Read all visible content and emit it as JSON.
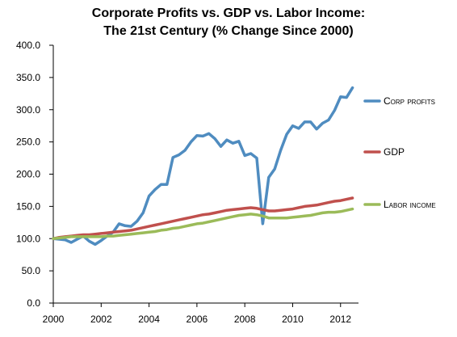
{
  "chart_data": {
    "type": "line",
    "title_lines": [
      "Corporate Profits vs. GDP vs. Labor Income:",
      "The 21st Century (% Change Since 2000)"
    ],
    "xlabel": "",
    "ylabel": "",
    "xlim": [
      2000,
      2012.75
    ],
    "ylim": [
      0,
      400
    ],
    "x_ticks": [
      2000,
      2002,
      2004,
      2006,
      2008,
      2010,
      2012
    ],
    "x_tick_labels": [
      "2000",
      "2002",
      "2004",
      "2006",
      "2008",
      "2010",
      "2012"
    ],
    "y_ticks": [
      0,
      50,
      100,
      150,
      200,
      250,
      300,
      350,
      400
    ],
    "y_tick_labels": [
      "0.0",
      "50.0",
      "100.0",
      "150.0",
      "200.0",
      "250.0",
      "300.0",
      "350.0",
      "400.0"
    ],
    "grid": false,
    "legend_placement": "right",
    "series": [
      {
        "name": "Corp profits",
        "color": "#4f8cc0",
        "x": [
          2000.0,
          2000.25,
          2000.5,
          2000.75,
          2001.0,
          2001.25,
          2001.5,
          2001.75,
          2002.0,
          2002.25,
          2002.5,
          2002.75,
          2003.0,
          2003.25,
          2003.5,
          2003.75,
          2004.0,
          2004.25,
          2004.5,
          2004.75,
          2005.0,
          2005.25,
          2005.5,
          2005.75,
          2006.0,
          2006.25,
          2006.5,
          2006.75,
          2007.0,
          2007.25,
          2007.5,
          2007.75,
          2008.0,
          2008.25,
          2008.5,
          2008.75,
          2009.0,
          2009.25,
          2009.5,
          2009.75,
          2010.0,
          2010.25,
          2010.5,
          2010.75,
          2011.0,
          2011.25,
          2011.5,
          2011.75,
          2012.0,
          2012.25,
          2012.5
        ],
        "values": [
          100,
          99,
          98,
          94,
          99,
          104,
          96,
          91,
          97,
          104,
          110,
          123,
          120,
          119,
          127,
          140,
          166,
          176,
          184,
          184,
          226,
          230,
          237,
          250,
          260,
          259,
          263,
          255,
          243,
          253,
          248,
          251,
          229,
          232,
          225,
          123,
          195,
          208,
          237,
          262,
          275,
          271,
          281,
          281,
          270,
          279,
          284,
          299,
          320,
          319,
          334
        ]
      },
      {
        "name": "GDP",
        "color": "#c0504d",
        "x": [
          2000.0,
          2000.25,
          2000.5,
          2000.75,
          2001.0,
          2001.25,
          2001.5,
          2001.75,
          2002.0,
          2002.25,
          2002.5,
          2002.75,
          2003.0,
          2003.25,
          2003.5,
          2003.75,
          2004.0,
          2004.25,
          2004.5,
          2004.75,
          2005.0,
          2005.25,
          2005.5,
          2005.75,
          2006.0,
          2006.25,
          2006.5,
          2006.75,
          2007.0,
          2007.25,
          2007.5,
          2007.75,
          2008.0,
          2008.25,
          2008.5,
          2008.75,
          2009.0,
          2009.25,
          2009.5,
          2009.75,
          2010.0,
          2010.25,
          2010.5,
          2010.75,
          2011.0,
          2011.25,
          2011.5,
          2011.75,
          2012.0,
          2012.25,
          2012.5
        ],
        "values": [
          100,
          102,
          103,
          104,
          105,
          106,
          106,
          107,
          108,
          109,
          110,
          111,
          112,
          113,
          115,
          117,
          119,
          121,
          123,
          125,
          127,
          129,
          131,
          133,
          135,
          137,
          138,
          140,
          142,
          144,
          145,
          146,
          147,
          148,
          147,
          145,
          143,
          143,
          144,
          145,
          146,
          148,
          150,
          151,
          152,
          154,
          156,
          158,
          159,
          161,
          163
        ]
      },
      {
        "name": "Labor income",
        "color": "#9bbb59",
        "x": [
          2000.0,
          2000.25,
          2000.5,
          2000.75,
          2001.0,
          2001.25,
          2001.5,
          2001.75,
          2002.0,
          2002.25,
          2002.5,
          2002.75,
          2003.0,
          2003.25,
          2003.5,
          2003.75,
          2004.0,
          2004.25,
          2004.5,
          2004.75,
          2005.0,
          2005.25,
          2005.5,
          2005.75,
          2006.0,
          2006.25,
          2006.5,
          2006.75,
          2007.0,
          2007.25,
          2007.5,
          2007.75,
          2008.0,
          2008.25,
          2008.5,
          2008.75,
          2009.0,
          2009.25,
          2009.5,
          2009.75,
          2010.0,
          2010.25,
          2010.5,
          2010.75,
          2011.0,
          2011.25,
          2011.5,
          2011.75,
          2012.0,
          2012.25,
          2012.5
        ],
        "values": [
          100,
          101,
          102,
          103,
          103,
          103,
          103,
          103,
          103,
          104,
          104,
          105,
          106,
          107,
          108,
          109,
          110,
          111,
          113,
          114,
          116,
          117,
          119,
          121,
          123,
          124,
          126,
          128,
          130,
          132,
          134,
          136,
          137,
          138,
          137,
          135,
          132,
          132,
          132,
          132,
          133,
          134,
          135,
          136,
          138,
          140,
          141,
          141,
          142,
          144,
          146
        ]
      }
    ]
  }
}
